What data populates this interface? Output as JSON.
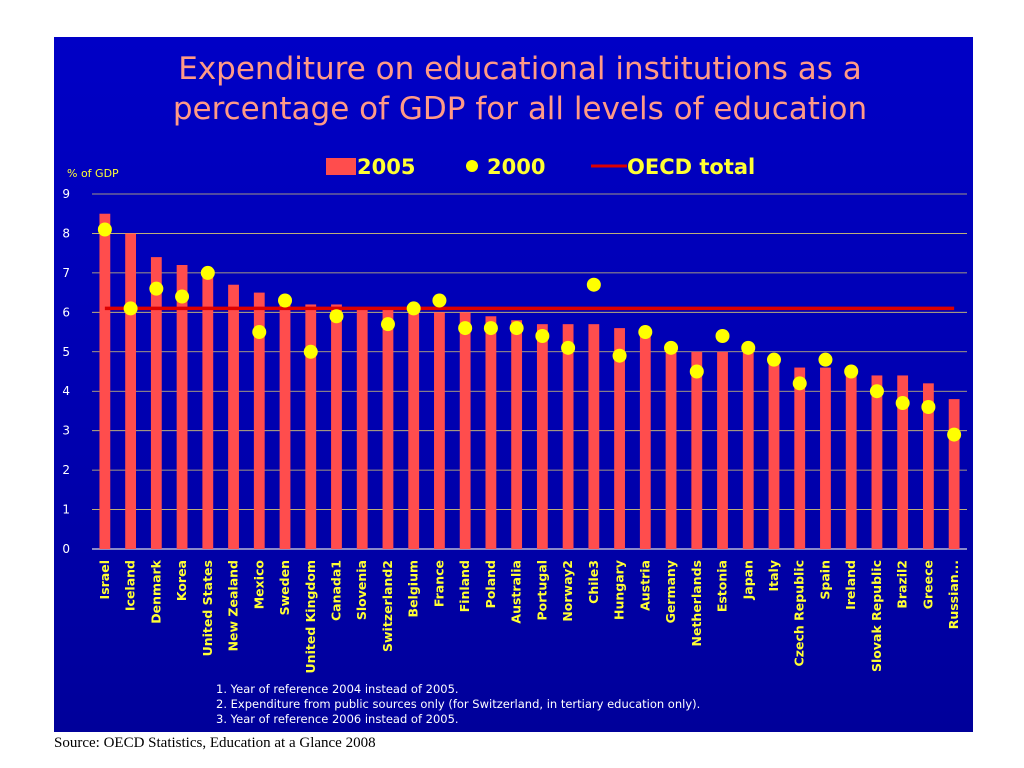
{
  "chart_data": {
    "type": "bar",
    "title_lines": [
      "Expenditure on educational institutions as a",
      "percentage of GDP for all levels of education"
    ],
    "ylabel": "% of GDP",
    "ylim": [
      0,
      9
    ],
    "yticks": [
      "0",
      "1",
      "2",
      "3",
      "4",
      "5",
      "6",
      "7",
      "8",
      "9"
    ],
    "grid": true,
    "legend_position": "top",
    "categories": [
      "Israel",
      "Iceland",
      "Denmark",
      "Korea",
      "United States",
      "New Zealand",
      "Mexico",
      "Sweden",
      "United Kingdom",
      "Canada1",
      "Slovenia",
      "Switzerland2",
      "Belgium",
      "France",
      "Finland",
      "Poland",
      "Australia",
      "Portugal",
      "Norway2",
      "Chile3",
      "Hungary",
      "Austria",
      "Germany",
      "Netherlands",
      "Estonia",
      "Japan",
      "Italy",
      "Czech Republic",
      "Spain",
      "Ireland",
      "Slovak Republic",
      "Brazil2",
      "Greece",
      "Russian..."
    ],
    "series": [
      {
        "name": "2005",
        "kind": "bar",
        "color": "#ff4d4d",
        "values": [
          8.5,
          8.0,
          7.4,
          7.2,
          7.1,
          6.7,
          6.5,
          6.4,
          6.2,
          6.2,
          6.1,
          6.1,
          6.1,
          6.0,
          6.0,
          5.9,
          5.8,
          5.7,
          5.7,
          5.7,
          5.6,
          5.5,
          5.1,
          5.0,
          5.0,
          5.0,
          4.7,
          4.6,
          4.6,
          4.5,
          4.4,
          4.4,
          4.2,
          3.8
        ]
      },
      {
        "name": "2000",
        "kind": "marker",
        "color": "#ffff00",
        "values": [
          8.1,
          6.1,
          6.6,
          6.4,
          7.0,
          null,
          5.5,
          6.3,
          5.0,
          5.9,
          null,
          5.7,
          6.1,
          6.3,
          5.6,
          5.6,
          5.6,
          5.4,
          5.1,
          6.7,
          4.9,
          5.5,
          5.1,
          4.5,
          5.4,
          5.1,
          4.8,
          4.2,
          4.8,
          4.5,
          4.0,
          3.7,
          3.6,
          2.9
        ]
      },
      {
        "name": "OECD total",
        "kind": "line",
        "color": "#dd0000",
        "value": 6.1
      }
    ],
    "notes": [
      "1.   Year of reference 2004 instead of 2005.",
      "2.   Expenditure from public sources only (for Switzerland, in tertiary education only).",
      "3.   Year of reference 2006 instead of 2005."
    ]
  },
  "source": "Source: OECD Statistics, Education at a Glance 2008"
}
